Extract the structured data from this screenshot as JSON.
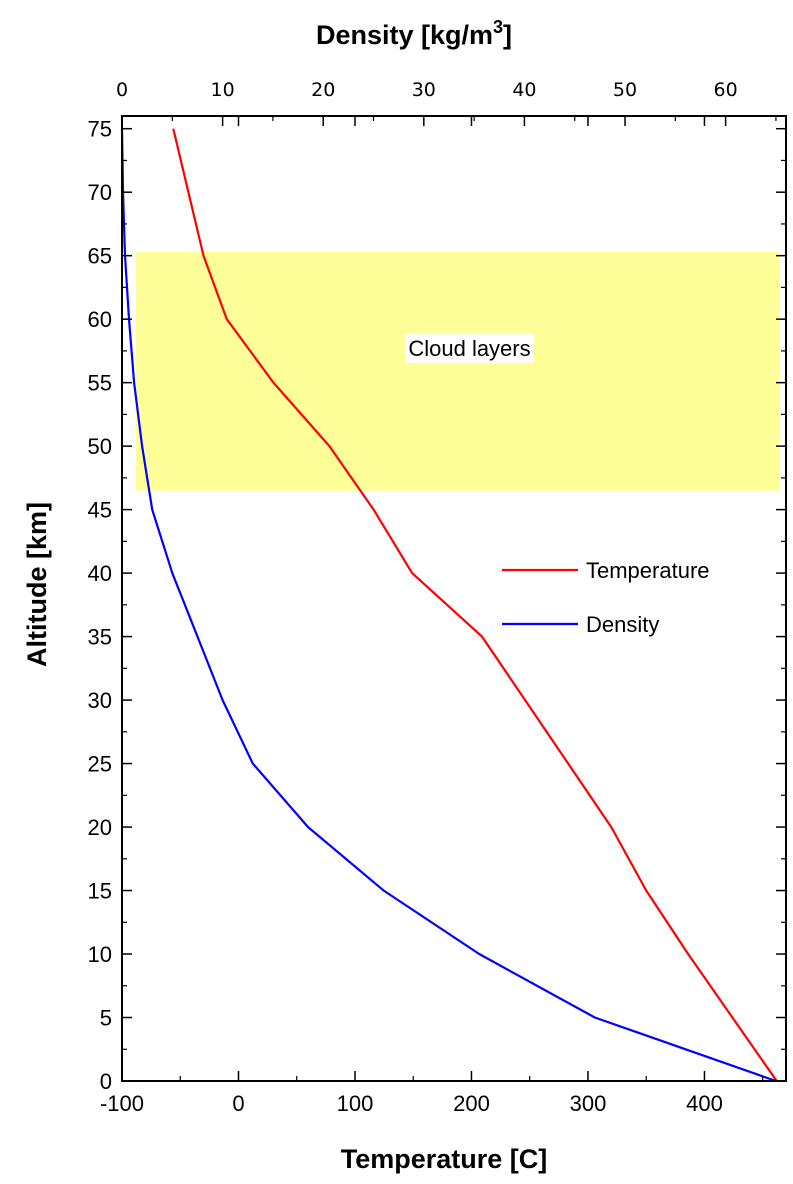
{
  "chart_data": {
    "type": "line",
    "title": "",
    "xlabel": "Temperature  [C]",
    "x2label_main": "Density  [kg/m",
    "x2label_sup": "3",
    "x2label_end": "]",
    "ylabel": "Altitude  [km]",
    "xlim": [
      -100,
      470
    ],
    "x2lim": [
      0,
      66
    ],
    "ylim": [
      0,
      76
    ],
    "x_ticks": [
      -100,
      0,
      100,
      200,
      300,
      400
    ],
    "x_tick_labels": [
      "-100",
      "0",
      "100",
      "200",
      "300",
      "400"
    ],
    "x2_ticks": [
      0,
      10,
      20,
      30,
      40,
      50,
      60
    ],
    "x2_tick_labels": [
      "0",
      "10",
      "20",
      "30",
      "40",
      "50",
      "60"
    ],
    "y_ticks": [
      0,
      5,
      10,
      15,
      20,
      25,
      30,
      35,
      40,
      45,
      50,
      55,
      60,
      65,
      70,
      75
    ],
    "y_tick_labels": [
      "0",
      "5",
      "10",
      "15",
      "20",
      "25",
      "30",
      "35",
      "40",
      "45",
      "50",
      "55",
      "60",
      "65",
      "70",
      "75"
    ],
    "grid": false,
    "legend_position": "right",
    "series": [
      {
        "name": "Temperature",
        "axis": "bottom",
        "color": "#ff0000",
        "points": [
          {
            "x": 462,
            "y": 0
          },
          {
            "x": 424,
            "y": 5
          },
          {
            "x": 386,
            "y": 10
          },
          {
            "x": 350,
            "y": 15
          },
          {
            "x": 320,
            "y": 20
          },
          {
            "x": 283,
            "y": 25
          },
          {
            "x": 246,
            "y": 30
          },
          {
            "x": 209,
            "y": 35
          },
          {
            "x": 149,
            "y": 40
          },
          {
            "x": 116,
            "y": 45
          },
          {
            "x": 78,
            "y": 50
          },
          {
            "x": 30,
            "y": 55
          },
          {
            "x": -10,
            "y": 60
          },
          {
            "x": -30,
            "y": 65
          },
          {
            "x": -43,
            "y": 70
          },
          {
            "x": -56,
            "y": 75
          }
        ]
      },
      {
        "name": "Density",
        "axis": "top",
        "color": "#0000ff",
        "points": [
          {
            "x": 65.0,
            "y": 0
          },
          {
            "x": 47.0,
            "y": 5
          },
          {
            "x": 35.5,
            "y": 10
          },
          {
            "x": 26.0,
            "y": 15
          },
          {
            "x": 18.5,
            "y": 20
          },
          {
            "x": 13.0,
            "y": 25
          },
          {
            "x": 10.0,
            "y": 30
          },
          {
            "x": 7.5,
            "y": 35
          },
          {
            "x": 5.0,
            "y": 40
          },
          {
            "x": 3.0,
            "y": 45
          },
          {
            "x": 2.0,
            "y": 50
          },
          {
            "x": 1.2,
            "y": 55
          },
          {
            "x": 0.7,
            "y": 60
          },
          {
            "x": 0.3,
            "y": 65
          },
          {
            "x": 0.1,
            "y": 70
          },
          {
            "x": 0.0,
            "y": 75
          }
        ]
      }
    ],
    "annotations": [
      {
        "label": "Cloud layers",
        "x_range": [
          -88,
          464
        ],
        "y_range": [
          46.5,
          65.3
        ],
        "fill": "#ffff99"
      }
    ]
  },
  "legend": {
    "items": [
      {
        "name": "Temperature",
        "color": "#ff0000"
      },
      {
        "name": "Density",
        "color": "#0000ff"
      }
    ]
  }
}
